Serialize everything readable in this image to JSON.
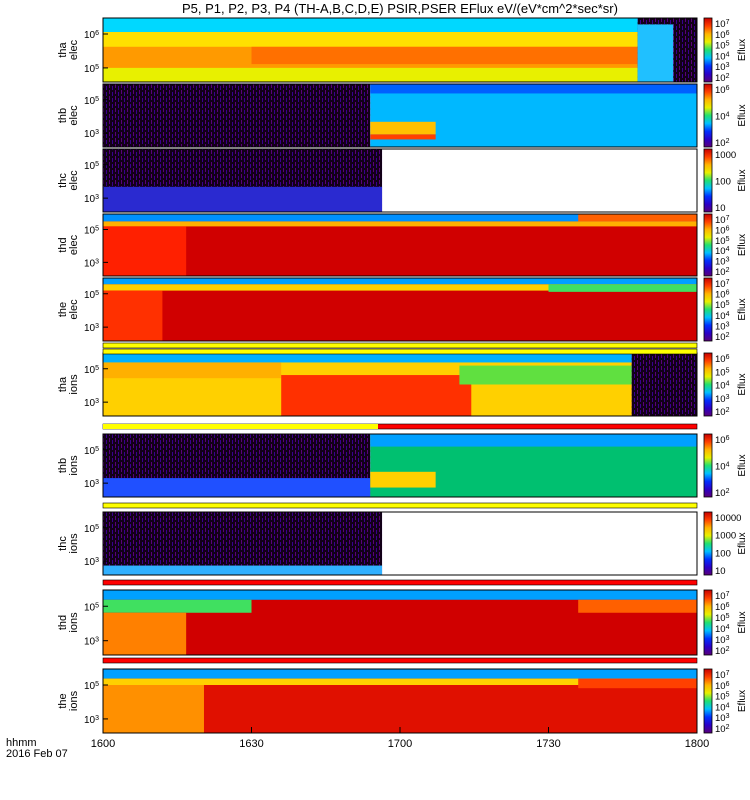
{
  "title": "P5, P1, P2, P3, P4 (TH-A,B,C,D,E) PSIR,PSER EFlux eV/(eV*cm^2*sec*sr)",
  "time_axis": {
    "label_line1": "hhmm",
    "label_line2": "2016 Feb 07",
    "ticks": [
      "1600",
      "1630",
      "1700",
      "1730",
      "1800"
    ],
    "range": [
      "1600",
      "1800"
    ]
  },
  "colorbar_label": "Eflux",
  "colormap": [
    "#5a0078",
    "#2a00c8",
    "#0030ff",
    "#00c0ff",
    "#20e070",
    "#e8f000",
    "#ffb400",
    "#ff4000",
    "#c80000"
  ],
  "chart_data": {
    "type": "heatmap",
    "x_unit": "UT hhmm",
    "x_range": [
      "1600",
      "1800"
    ],
    "panels": [
      {
        "id": "tha_elec",
        "ylabel": [
          "tha",
          "elec"
        ],
        "yticks": [
          "10^6",
          "10^5"
        ],
        "cbar_ticks": [
          "10^7",
          "10^6",
          "10^5",
          "10^4",
          "10^3",
          "10^2"
        ],
        "cbar_label": "Eflux"
      },
      {
        "id": "thb_elec",
        "ylabel": [
          "thb",
          "elec"
        ],
        "yticks": [
          "10^5",
          "10^3"
        ],
        "cbar_ticks": [
          "10^6",
          "10^4",
          "10^2"
        ],
        "cbar_label": "Eflux"
      },
      {
        "id": "thc_elec",
        "ylabel": [
          "thc",
          "elec"
        ],
        "yticks": [
          "10^5",
          "10^3"
        ],
        "cbar_ticks": [
          "1000",
          "100",
          "10"
        ],
        "cbar_label": "Eflux"
      },
      {
        "id": "thd_elec",
        "ylabel": [
          "thd",
          "elec"
        ],
        "yticks": [
          "10^5",
          "10^3"
        ],
        "cbar_ticks": [
          "10^7",
          "10^6",
          "10^5",
          "10^4",
          "10^3",
          "10^2"
        ],
        "cbar_label": "Eflux"
      },
      {
        "id": "the_elec",
        "ylabel": [
          "the",
          "elec"
        ],
        "yticks": [
          "10^5",
          "10^3"
        ],
        "cbar_ticks": [
          "10^7",
          "10^6",
          "10^5",
          "10^4",
          "10^3",
          "10^2"
        ],
        "cbar_label": "Eflux"
      },
      {
        "id": "tha_ions",
        "ylabel": [
          "tha",
          "ions"
        ],
        "yticks": [
          "10^5",
          "10^3"
        ],
        "cbar_ticks": [
          "10^6",
          "10^5",
          "10^4",
          "10^3",
          "10^2"
        ],
        "cbar_label": "Eflux"
      },
      {
        "id": "thb_ions",
        "ylabel": [
          "thb",
          "ions"
        ],
        "yticks": [
          "10^5",
          "10^3"
        ],
        "cbar_ticks": [
          "10^6",
          "10^4",
          "10^2"
        ],
        "cbar_label": "Eflux"
      },
      {
        "id": "thc_ions",
        "ylabel": [
          "thc",
          "ions"
        ],
        "yticks": [
          "10^5",
          "10^3"
        ],
        "cbar_ticks": [
          "10000",
          "1000",
          "100",
          "10"
        ],
        "cbar_label": "Eflux"
      },
      {
        "id": "thd_ions",
        "ylabel": [
          "thd",
          "ions"
        ],
        "yticks": [
          "10^5",
          "10^3"
        ],
        "cbar_ticks": [
          "10^7",
          "10^6",
          "10^5",
          "10^4",
          "10^3",
          "10^2"
        ],
        "cbar_label": "Eflux"
      },
      {
        "id": "the_ions",
        "ylabel": [
          "the",
          "ions"
        ],
        "yticks": [
          "10^5",
          "10^3"
        ],
        "cbar_ticks": [
          "10^7",
          "10^6",
          "10^5",
          "10^4",
          "10^3",
          "10^2"
        ],
        "cbar_label": "Eflux"
      }
    ]
  }
}
